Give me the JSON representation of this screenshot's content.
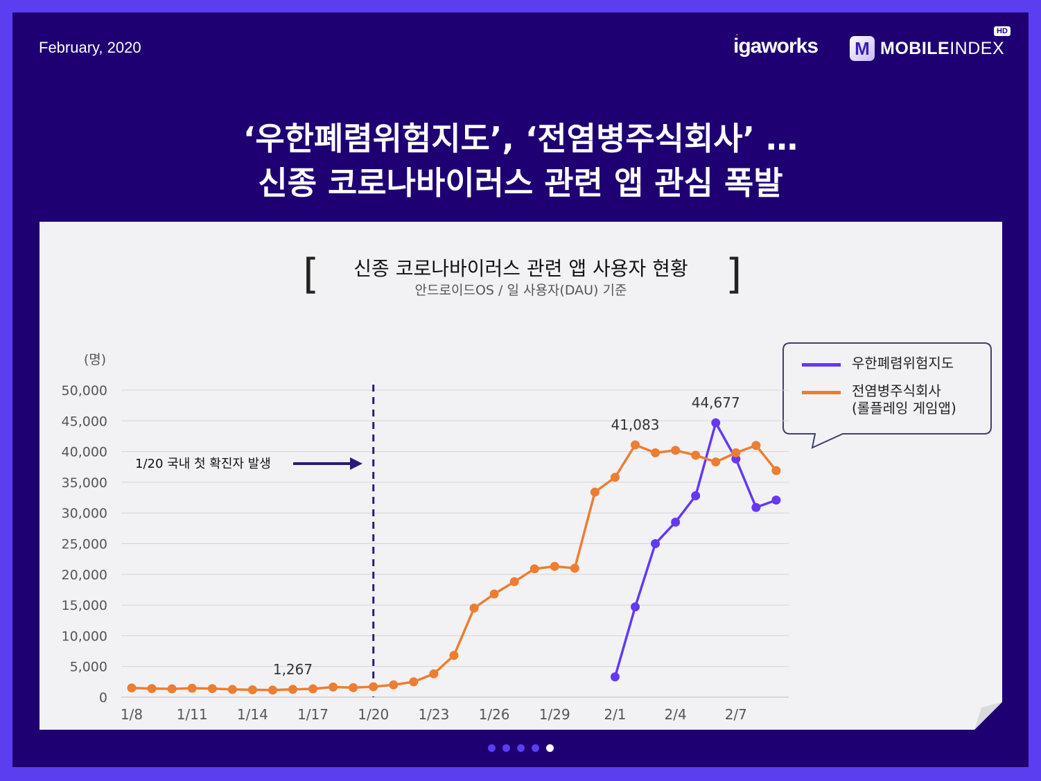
{
  "header": {
    "date": "February, 2020",
    "logo_igaworks": "igaworks",
    "logo_mobileindex_bold": "MOBILE",
    "logo_mobileindex_thin": "INDEX",
    "logo_hd": "HD",
    "logo_mark": "M"
  },
  "headline": {
    "line1": "‘우한폐렴위험지도’, ‘전염병주식회사’ …",
    "line2": "신종 코로나바이러스 관련 앱 관심 폭발"
  },
  "chart_data": {
    "type": "line",
    "title": "신종 코로나바이러스 관련 앱 사용자 현황",
    "subtitle": "안드로이드OS / 일 사용자(DAU) 기준",
    "ylabel": "(명)",
    "xlabel": "",
    "ylim": [
      0,
      50000
    ],
    "yticks": [
      "50,000",
      "45,000",
      "40,000",
      "35,000",
      "30,000",
      "25,000",
      "20,000",
      "15,000",
      "10,000",
      "5,000",
      "0"
    ],
    "xticks": [
      "1/8",
      "1/11",
      "1/14",
      "1/17",
      "1/20",
      "1/23",
      "1/26",
      "1/29",
      "2/1",
      "2/4",
      "2/7"
    ],
    "x": [
      "1/8",
      "1/9",
      "1/10",
      "1/11",
      "1/12",
      "1/13",
      "1/14",
      "1/15",
      "1/16",
      "1/17",
      "1/18",
      "1/19",
      "1/20",
      "1/21",
      "1/22",
      "1/23",
      "1/24",
      "1/25",
      "1/26",
      "1/27",
      "1/28",
      "1/29",
      "1/30",
      "1/31",
      "2/1",
      "2/2",
      "2/3",
      "2/4",
      "2/5",
      "2/6",
      "2/7",
      "2/8",
      "2/9"
    ],
    "grid": true,
    "legend_position": "top-right",
    "series": [
      {
        "name": "우한폐렴위험지도",
        "color": "#6438f5",
        "values": [
          null,
          null,
          null,
          null,
          null,
          null,
          null,
          null,
          null,
          null,
          null,
          null,
          null,
          null,
          null,
          null,
          null,
          null,
          null,
          null,
          null,
          null,
          null,
          null,
          3300,
          14700,
          25000,
          28500,
          32800,
          44677,
          38800,
          30900,
          32100
        ]
      },
      {
        "name": "전염병주식회사\n(롤플레잉 게임앱)",
        "color": "#ed7d31",
        "values": [
          1500,
          1400,
          1350,
          1450,
          1400,
          1250,
          1200,
          1150,
          1267,
          1350,
          1650,
          1550,
          1700,
          2000,
          2500,
          3800,
          6800,
          14500,
          16800,
          18800,
          20900,
          21300,
          21000,
          33400,
          35800,
          41083,
          39800,
          40200,
          39400,
          38300,
          39800,
          41000,
          36900
        ]
      }
    ],
    "annotations": {
      "event_label": "1/20 국내 첫 확진자 발생",
      "event_x": "1/20",
      "value_labels": [
        {
          "x": "1/16",
          "series": 1,
          "text": "1,267"
        },
        {
          "x": "2/2",
          "series": 1,
          "text": "41,083"
        },
        {
          "x": "2/6",
          "series": 0,
          "text": "44,677"
        }
      ]
    }
  },
  "pager": {
    "count": 5,
    "active_index": 4
  }
}
